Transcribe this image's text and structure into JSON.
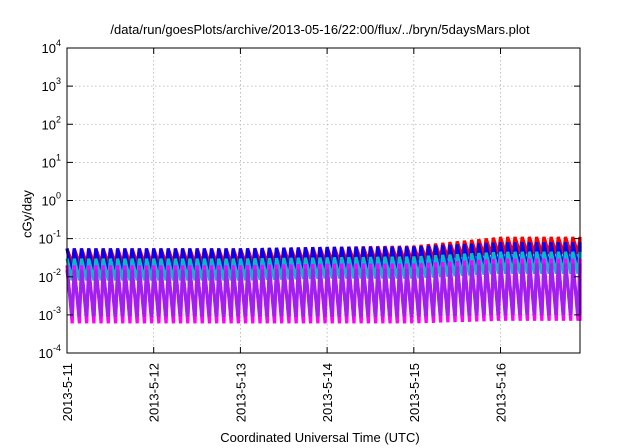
{
  "chart_data": {
    "type": "line",
    "title": "/data/run/goesPlots/archive/2013-05-16/22:00/flux/../bryn/5daysMars.plot",
    "xlabel": "Coordinated Universal Time (UTC)",
    "ylabel": "cGy/day",
    "yscale": "log",
    "ylim": [
      0.0001,
      10000
    ],
    "xlim": [
      "2013-05-11T00:00",
      "2013-05-16T22:00"
    ],
    "grid": true,
    "legend": "none",
    "x_ticks": [
      "2013-5-11",
      "2013-5-12",
      "2013-5-13",
      "2013-5-14",
      "2013-5-15",
      "2013-5-16"
    ],
    "y_ticks": [
      {
        "value": 0.0001,
        "base": "10",
        "exp": "-4"
      },
      {
        "value": 0.001,
        "base": "10",
        "exp": "-3"
      },
      {
        "value": 0.01,
        "base": "10",
        "exp": "-2"
      },
      {
        "value": 0.1,
        "base": "10",
        "exp": "-1"
      },
      {
        "value": 1,
        "base": "10",
        "exp": "0"
      },
      {
        "value": 10,
        "base": "10",
        "exp": "1"
      },
      {
        "value": 100,
        "base": "10",
        "exp": "2"
      },
      {
        "value": 1000,
        "base": "10",
        "exp": "3"
      },
      {
        "value": 10000,
        "base": "10",
        "exp": "4"
      }
    ],
    "cycles_per_day": 12,
    "series": [
      {
        "color": "#ff0000",
        "peak": [
          0.055,
          0.055,
          0.055,
          0.06,
          0.065,
          0.11
        ],
        "trough": [
          0.022,
          0.022,
          0.022,
          0.024,
          0.026,
          0.04
        ]
      },
      {
        "color": "#0000ff",
        "peak": [
          0.055,
          0.055,
          0.055,
          0.06,
          0.062,
          0.08
        ],
        "trough": [
          0.01,
          0.01,
          0.01,
          0.011,
          0.011,
          0.015
        ]
      },
      {
        "color": "#00bfbf",
        "peak": [
          0.03,
          0.03,
          0.03,
          0.032,
          0.034,
          0.045
        ],
        "trough": [
          0.008,
          0.008,
          0.008,
          0.009,
          0.009,
          0.012
        ]
      },
      {
        "color": "#ff00ff",
        "peak": [
          0.02,
          0.02,
          0.02,
          0.022,
          0.022,
          0.03
        ],
        "trough": [
          0.0006,
          0.0006,
          0.0006,
          0.0006,
          0.0006,
          0.0007
        ]
      },
      {
        "color": "#a020f0",
        "peak": [
          0.015,
          0.015,
          0.015,
          0.016,
          0.016,
          0.022
        ],
        "trough": [
          0.0009,
          0.0009,
          0.0009,
          0.0009,
          0.0009,
          0.001
        ]
      }
    ]
  }
}
